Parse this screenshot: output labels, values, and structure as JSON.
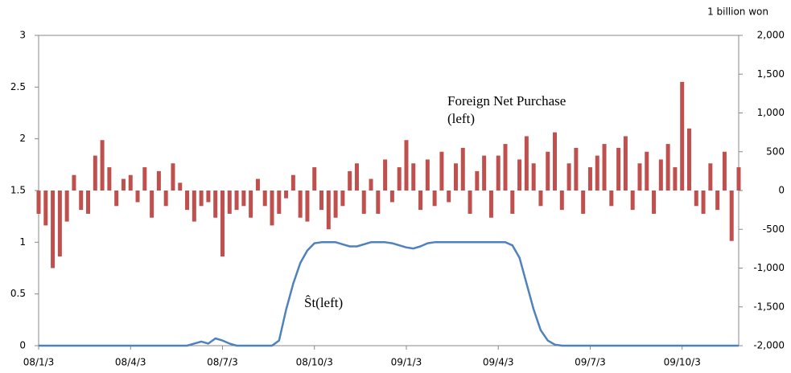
{
  "chart_data": {
    "type": "bar",
    "y2_unit": "1 billion won",
    "annotations": [
      "Foreign Net Purchase",
      "(left)",
      "Ŝt(left)"
    ],
    "categories": [
      "08/1/3",
      null,
      null,
      null,
      null,
      null,
      null,
      null,
      null,
      null,
      null,
      null,
      null,
      "08/4/3",
      null,
      null,
      null,
      null,
      null,
      null,
      null,
      null,
      null,
      null,
      null,
      null,
      "08/7/3",
      null,
      null,
      null,
      null,
      null,
      null,
      null,
      null,
      null,
      null,
      null,
      null,
      "08/10/3",
      null,
      null,
      null,
      null,
      null,
      null,
      null,
      null,
      null,
      null,
      null,
      null,
      "09/1/3",
      null,
      null,
      null,
      null,
      null,
      null,
      null,
      null,
      null,
      null,
      null,
      null,
      "09/4/3",
      null,
      null,
      null,
      null,
      null,
      null,
      null,
      null,
      null,
      null,
      null,
      null,
      "09/7/3",
      null,
      null,
      null,
      null,
      null,
      null,
      null,
      null,
      null,
      null,
      null,
      null,
      "09/10/3",
      null,
      null,
      null,
      null,
      null,
      null,
      null,
      null
    ],
    "series": [
      {
        "type": "bar",
        "axis": "y2",
        "color": "#c0504d",
        "values": [
          -300,
          -450,
          -1000,
          -850,
          -400,
          200,
          -250,
          -300,
          450,
          650,
          300,
          -200,
          150,
          200,
          -150,
          300,
          -350,
          250,
          -200,
          350,
          100,
          -250,
          -400,
          -200,
          -150,
          -350,
          -850,
          -300,
          -250,
          -200,
          -350,
          150,
          -200,
          -450,
          -300,
          -100,
          200,
          -350,
          -400,
          300,
          -250,
          -500,
          -350,
          -200,
          250,
          350,
          -300,
          150,
          -300,
          400,
          -150,
          300,
          650,
          350,
          -250,
          400,
          -200,
          500,
          -150,
          350,
          550,
          -300,
          250,
          450,
          -350,
          450,
          600,
          -300,
          400,
          700,
          350,
          -200,
          500,
          750,
          -250,
          350,
          550,
          -300,
          300,
          450,
          600,
          -200,
          550,
          700,
          -250,
          350,
          500,
          -300,
          400,
          600,
          300,
          1400,
          800,
          -200,
          -300,
          350,
          -250,
          500,
          -650,
          300
        ]
      },
      {
        "type": "line",
        "axis": "y",
        "color": "#4f81bd",
        "values": [
          0,
          0,
          0,
          0,
          0,
          0,
          0,
          0,
          0,
          0,
          0,
          0,
          0,
          0,
          0,
          0,
          0,
          0,
          0,
          0,
          0,
          0,
          0.02,
          0.04,
          0.02,
          0.07,
          0.05,
          0.02,
          0,
          0,
          0,
          0,
          0,
          0,
          0.05,
          0.35,
          0.6,
          0.8,
          0.92,
          0.99,
          1,
          1,
          1,
          0.98,
          0.96,
          0.96,
          0.98,
          1,
          1,
          1,
          0.99,
          0.97,
          0.95,
          0.94,
          0.96,
          0.99,
          1,
          1,
          1,
          1,
          1,
          1,
          1,
          1,
          1,
          1,
          1,
          0.97,
          0.85,
          0.6,
          0.35,
          0.15,
          0.05,
          0.01,
          0,
          0,
          0,
          0,
          0,
          0,
          0,
          0,
          0,
          0,
          0,
          0,
          0,
          0,
          0,
          0,
          0,
          0,
          0,
          0,
          0,
          0,
          0,
          0,
          0,
          0
        ]
      }
    ],
    "ylim": [
      0,
      3
    ],
    "yticks": [
      0,
      0.5,
      1,
      1.5,
      2,
      2.5,
      3
    ],
    "y2lim": [
      -2000,
      2000
    ],
    "y2ticks": [
      {
        "value": -2000,
        "label": "-2,000"
      },
      {
        "value": -1500,
        "label": "-1,500"
      },
      {
        "value": -1000,
        "label": "-1,000"
      },
      {
        "value": -500,
        "label": "-500"
      },
      0,
      500,
      {
        "value": 1000,
        "label": "1,000"
      },
      {
        "value": 1500,
        "label": "1,500"
      },
      {
        "value": 2000,
        "label": "2,000"
      }
    ]
  }
}
